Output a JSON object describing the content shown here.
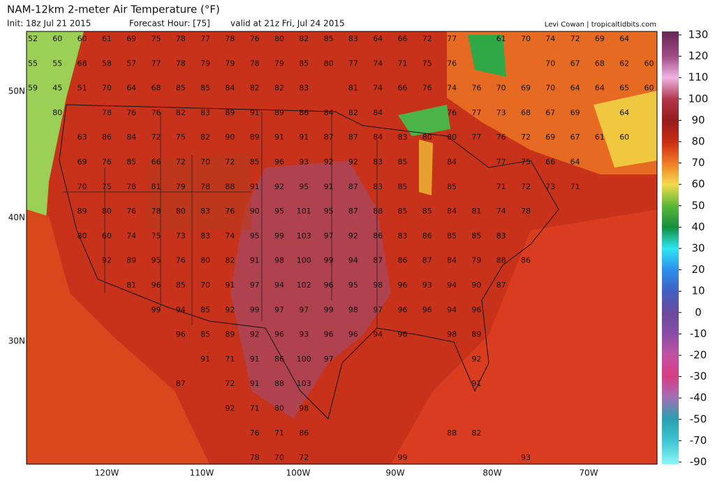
{
  "header": {
    "title": "NAM-12km 2-meter Air Temperature (°F)",
    "init": "Init: 18z Jul 21 2015",
    "forecast_hour": "Forecast Hour: [75]",
    "valid": "valid at 21z Fri, Jul 24 2015",
    "credit": "Levi Cowan | tropicaltidbits.com"
  },
  "map": {
    "latitude_labels": [
      "50N",
      "40N",
      "30N"
    ],
    "longitude_labels": [
      "120W",
      "110W",
      "100W",
      "90W",
      "80W",
      "70W"
    ],
    "temperatures": [
      [
        52,
        60,
        60,
        61,
        69,
        75,
        78,
        77,
        78,
        76,
        80,
        82,
        85,
        83,
        64,
        66,
        72,
        77,
        null,
        61,
        70,
        74,
        72,
        69,
        64,
        null
      ],
      [
        55,
        55,
        68,
        58,
        57,
        77,
        78,
        79,
        79,
        78,
        79,
        85,
        80,
        77,
        74,
        71,
        75,
        76,
        null,
        null,
        null,
        70,
        67,
        68,
        62,
        60
      ],
      [
        59,
        45,
        51,
        70,
        64,
        68,
        85,
        85,
        84,
        82,
        82,
        83,
        null,
        81,
        74,
        66,
        76,
        74,
        76,
        70,
        69,
        70,
        64,
        64,
        65,
        60
      ],
      [
        null,
        80,
        null,
        78,
        76,
        76,
        82,
        83,
        89,
        91,
        89,
        86,
        84,
        82,
        84,
        null,
        null,
        76,
        77,
        73,
        68,
        67,
        69,
        null,
        64,
        null
      ],
      [
        null,
        null,
        63,
        86,
        84,
        72,
        75,
        82,
        90,
        89,
        91,
        91,
        87,
        87,
        84,
        83,
        80,
        80,
        77,
        76,
        72,
        69,
        67,
        61,
        60,
        null
      ],
      [
        null,
        null,
        69,
        76,
        85,
        66,
        72,
        70,
        72,
        85,
        96,
        93,
        92,
        92,
        83,
        85,
        null,
        84,
        null,
        77,
        75,
        66,
        64,
        null,
        null,
        null
      ],
      [
        null,
        null,
        70,
        75,
        78,
        81,
        79,
        78,
        88,
        91,
        92,
        95,
        91,
        87,
        83,
        85,
        null,
        85,
        null,
        71,
        72,
        73,
        71,
        null,
        null,
        null
      ],
      [
        null,
        null,
        89,
        80,
        76,
        78,
        80,
        83,
        76,
        90,
        95,
        101,
        95,
        87,
        88,
        85,
        85,
        84,
        81,
        74,
        78,
        null,
        null,
        null,
        null,
        null
      ],
      [
        null,
        null,
        80,
        60,
        74,
        75,
        73,
        83,
        74,
        95,
        99,
        103,
        97,
        92,
        86,
        83,
        86,
        85,
        85,
        83,
        null,
        null,
        null,
        null,
        null,
        null
      ],
      [
        null,
        null,
        null,
        92,
        89,
        95,
        76,
        80,
        82,
        91,
        98,
        100,
        99,
        94,
        87,
        86,
        87,
        84,
        79,
        88,
        86,
        null,
        null,
        null,
        null,
        null
      ],
      [
        null,
        null,
        null,
        null,
        81,
        96,
        85,
        70,
        91,
        97,
        94,
        102,
        96,
        95,
        98,
        96,
        93,
        94,
        90,
        87,
        null,
        null,
        null,
        null,
        null,
        null
      ],
      [
        null,
        null,
        null,
        null,
        null,
        99,
        94,
        85,
        92,
        99,
        97,
        97,
        99,
        98,
        97,
        96,
        96,
        94,
        96,
        null,
        null,
        null,
        null,
        null,
        null,
        null
      ],
      [
        null,
        null,
        null,
        null,
        null,
        null,
        96,
        85,
        89,
        92,
        96,
        93,
        96,
        96,
        94,
        96,
        null,
        98,
        89,
        null,
        null,
        null,
        null,
        null,
        null,
        null
      ],
      [
        null,
        null,
        null,
        null,
        null,
        null,
        null,
        91,
        71,
        91,
        86,
        100,
        97,
        null,
        null,
        null,
        null,
        null,
        92,
        null,
        null,
        null,
        null,
        null,
        null,
        null
      ],
      [
        null,
        null,
        null,
        null,
        null,
        null,
        87,
        null,
        72,
        91,
        88,
        103,
        null,
        null,
        null,
        null,
        null,
        null,
        91,
        null,
        null,
        null,
        null,
        null,
        null,
        null
      ],
      [
        null,
        null,
        null,
        null,
        null,
        null,
        null,
        null,
        92,
        71,
        80,
        98,
        null,
        null,
        null,
        null,
        null,
        null,
        null,
        null,
        null,
        null,
        null,
        null,
        null,
        null
      ],
      [
        null,
        null,
        null,
        null,
        null,
        null,
        null,
        null,
        null,
        76,
        71,
        86,
        null,
        null,
        null,
        null,
        null,
        88,
        82,
        null,
        null,
        null,
        null,
        null,
        null,
        null
      ],
      [
        null,
        null,
        null,
        null,
        null,
        null,
        null,
        null,
        null,
        78,
        70,
        72,
        null,
        null,
        null,
        99,
        null,
        null,
        null,
        null,
        93,
        null,
        null,
        null,
        null,
        null
      ]
    ]
  },
  "colorbar": {
    "ticks": [
      130,
      120,
      110,
      100,
      90,
      80,
      70,
      60,
      50,
      40,
      30,
      20,
      10,
      0,
      -10,
      -20,
      -30,
      -40,
      -50,
      -70,
      -90
    ],
    "colors": [
      "#6e2a5c",
      "#a04a86",
      "#f0b4e4",
      "#b0384e",
      "#961c1c",
      "#cc2c14",
      "#f07a24",
      "#f2dc4a",
      "#5cb838",
      "#10903c",
      "#2ee6f0",
      "#2a90ee",
      "#4060c2",
      "#6a4a9e",
      "#8c4ca6",
      "#c052a2",
      "#d83c84",
      "#a070b8",
      "#2aa0ae",
      "#3ec4d4",
      "#86f2f4"
    ]
  }
}
